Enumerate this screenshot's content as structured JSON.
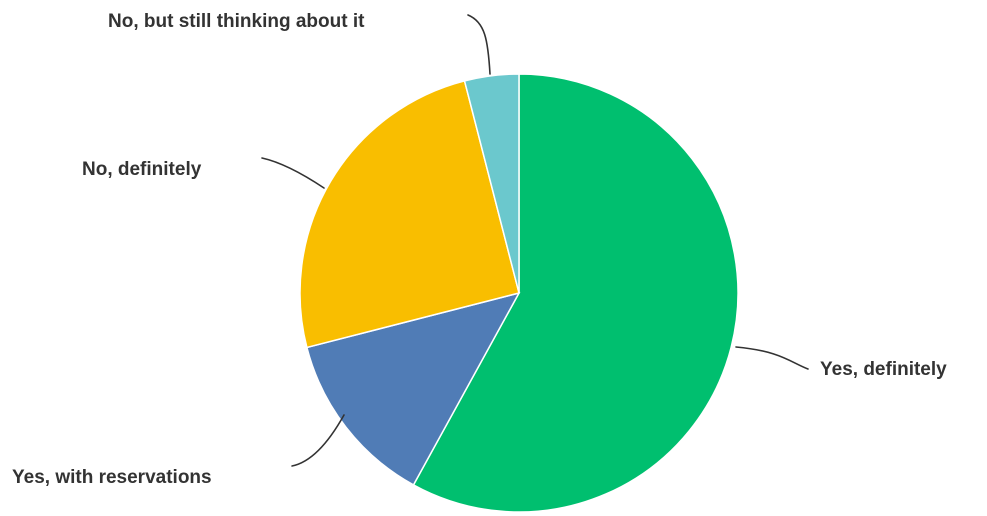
{
  "chart_data": {
    "type": "pie",
    "title": "",
    "slices": [
      {
        "label": "Yes, definitely",
        "value": 58,
        "color": "#00bf6f"
      },
      {
        "label": "Yes, with reservations",
        "value": 13,
        "color": "#507cb6"
      },
      {
        "label": "No, definitely",
        "value": 25,
        "color": "#f9be00"
      },
      {
        "label": "No, but still thinking about it",
        "value": 4,
        "color": "#6bc8cd"
      }
    ],
    "start_angle": "12 o'clock",
    "direction": "clockwise",
    "legend": "none"
  }
}
